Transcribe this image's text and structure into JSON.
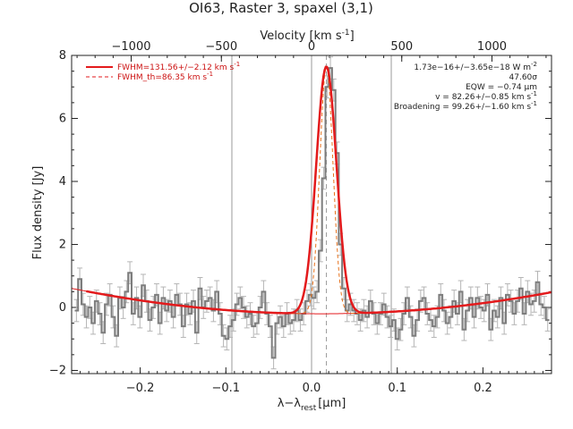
{
  "chart_data": {
    "type": "line",
    "title": "OI63, Raster 3, spaxel (3,1)",
    "xlabel_main": "λ−λ",
    "xlabel_sub": "rest",
    "xlabel_unit": "[μm]",
    "ylabel": "Flux density [Jy]",
    "top_axis_label": "Velocity [km s",
    "top_axis_label_sup": "-1",
    "top_axis_label_end": "]",
    "xlim": [
      -0.28,
      0.28
    ],
    "ylim": [
      -2.1,
      8.0
    ],
    "x_ticks": [
      -0.2,
      -0.1,
      0.0,
      0.1,
      0.2
    ],
    "x_tick_labels": [
      "−0.2",
      "−0.1",
      "0.0",
      "0.1",
      "0.2"
    ],
    "y_ticks": [
      -2,
      0,
      2,
      4,
      6,
      8
    ],
    "y_tick_labels": [
      "−2",
      "0",
      "2",
      "4",
      "6",
      "8"
    ],
    "top_ticks_kms": [
      -1000,
      -500,
      0,
      500,
      1000
    ],
    "top_tick_labels": [
      "−1000",
      "−500",
      "0",
      "500",
      "1000"
    ],
    "velocity_scale_um_per_kms": 0.0002105,
    "vertical_lines_x": [
      -0.093,
      0.0,
      0.093
    ],
    "dashed_line_x": 0.0173,
    "legend": [
      {
        "label": "FWHM=131.56+/−2.12 km s",
        "sup": "-1",
        "style": "solid",
        "color": "#e31a1c"
      },
      {
        "label": "FWHM_th=86.35 km s",
        "sup": "-1",
        "style": "dashed",
        "color": "#e31a1c"
      }
    ],
    "annotations": [
      {
        "text": "1.73e−16+/−3.65e−18 W m",
        "sup": "-2"
      },
      {
        "text": "47.60σ",
        "sup": ""
      },
      {
        "text": "EQW = −0.74 μm",
        "sup": ""
      },
      {
        "text": "v = 82.26+/−0.85 km s",
        "sup": "-1"
      },
      {
        "text": "Broadening = 99.26+/−1.60 km s",
        "sup": "-1"
      }
    ],
    "fit": {
      "center": 0.0173,
      "amplitude": 7.85,
      "sigma_total": 0.01176,
      "sigma_thermal": 0.00772,
      "baseline_coeffs": [
        -0.2,
        -0.22,
        9.5
      ],
      "colors": {
        "total": "#e31a1c",
        "component": "#e8721c",
        "baseline": "#e31a1c"
      }
    },
    "series": [
      {
        "kind": "data",
        "x": [
          -0.2744,
          -0.2705,
          -0.2666,
          -0.2627,
          -0.2588,
          -0.2549,
          -0.251,
          -0.2471,
          -0.2432,
          -0.2393,
          -0.2354,
          -0.2315,
          -0.2276,
          -0.2237,
          -0.2198,
          -0.2159,
          -0.212,
          -0.2081,
          -0.2042,
          -0.2003,
          -0.1964,
          -0.1925,
          -0.1886,
          -0.1847,
          -0.1808,
          -0.1769,
          -0.173,
          -0.1691,
          -0.1652,
          -0.1613,
          -0.1574,
          -0.1535,
          -0.1496,
          -0.1457,
          -0.1418,
          -0.1379,
          -0.134,
          -0.1301,
          -0.1262,
          -0.1223,
          -0.1184,
          -0.1145,
          -0.1106,
          -0.1067,
          -0.1028,
          -0.0989,
          -0.095,
          -0.0911,
          -0.0872,
          -0.0833,
          -0.0794,
          -0.0755,
          -0.0716,
          -0.0677,
          -0.0638,
          -0.0599,
          -0.056,
          -0.0521,
          -0.0482,
          -0.0443,
          -0.0404,
          -0.0365,
          -0.0326,
          -0.0287,
          -0.0248,
          -0.0209,
          -0.017,
          -0.0131,
          -0.0092,
          -0.0053,
          -0.0014,
          0.0025,
          0.0064,
          0.0103,
          0.0142,
          0.0181,
          0.022,
          0.0259,
          0.0298,
          0.0337,
          0.0376,
          0.0415,
          0.0454,
          0.0493,
          0.0532,
          0.0571,
          0.061,
          0.0649,
          0.0688,
          0.0727,
          0.0766,
          0.0805,
          0.0844,
          0.0883,
          0.0922,
          0.0961,
          0.1,
          0.1039,
          0.1078,
          0.1117,
          0.1156,
          0.1195,
          0.1234,
          0.1273,
          0.1312,
          0.1351,
          0.139,
          0.1429,
          0.1468,
          0.1507,
          0.1546,
          0.1585,
          0.1624,
          0.1663,
          0.1702,
          0.1741,
          0.178,
          0.1819,
          0.1858,
          0.1897,
          0.1936,
          0.1975,
          0.2014,
          0.2053,
          0.2092,
          0.2131,
          0.217,
          0.2209,
          0.2248,
          0.2287,
          0.2326,
          0.2365,
          0.2404,
          0.2443,
          0.2482,
          0.2521,
          0.256,
          0.2599,
          0.2638,
          0.2677,
          0.2716,
          0.2755
        ],
        "y": [
          -0.1,
          0.9,
          0.1,
          -0.3,
          0.0,
          -0.5,
          0.2,
          -0.2,
          -0.8,
          0.1,
          0.4,
          -0.3,
          -0.9,
          0.3,
          0.0,
          0.5,
          1.1,
          -0.2,
          0.3,
          -0.3,
          0.7,
          0.2,
          -0.4,
          0.0,
          0.4,
          -0.5,
          0.3,
          -0.1,
          0.2,
          -0.3,
          0.4,
          0.1,
          -0.6,
          0.1,
          -0.2,
          0.2,
          -0.8,
          0.6,
          0.0,
          0.2,
          0.3,
          -0.1,
          0.5,
          -0.2,
          -0.9,
          -1.0,
          -0.6,
          -0.4,
          0.1,
          0.3,
          0.0,
          -0.3,
          -0.2,
          -0.6,
          -0.5,
          0.0,
          0.5,
          -0.2,
          -0.6,
          -1.6,
          -0.5,
          -0.3,
          -0.6,
          -0.2,
          -0.5,
          -0.4,
          -0.1,
          -0.4,
          -0.2,
          0.2,
          0.4,
          0.3,
          0.5,
          1.8,
          4.1,
          7.0,
          7.6,
          6.9,
          4.9,
          2.0,
          0.6,
          -0.1,
          0.1,
          -0.1,
          -0.2,
          -0.4,
          -0.1,
          -0.3,
          0.2,
          -0.2,
          -0.5,
          -0.2,
          0.1,
          -0.3,
          -0.6,
          -0.4,
          -1.0,
          -0.7,
          -0.2,
          0.3,
          -0.3,
          -0.9,
          -0.4,
          0.2,
          0.3,
          -0.2,
          -0.4,
          -0.6,
          -0.3,
          0.4,
          -0.1,
          -0.5,
          -0.3,
          0.2,
          -0.2,
          0.5,
          -0.7,
          -0.1,
          0.3,
          -0.3,
          0.3,
          0.0,
          -0.1,
          0.4,
          -0.7,
          -0.1,
          -0.3,
          0.3,
          -0.5,
          0.4,
          0.2,
          -0.2,
          0.2,
          0.6,
          -0.2,
          0.5,
          0.1,
          0.2,
          0.8,
          0.1,
          0.0,
          -0.4
        ],
        "err": 0.35
      }
    ]
  }
}
